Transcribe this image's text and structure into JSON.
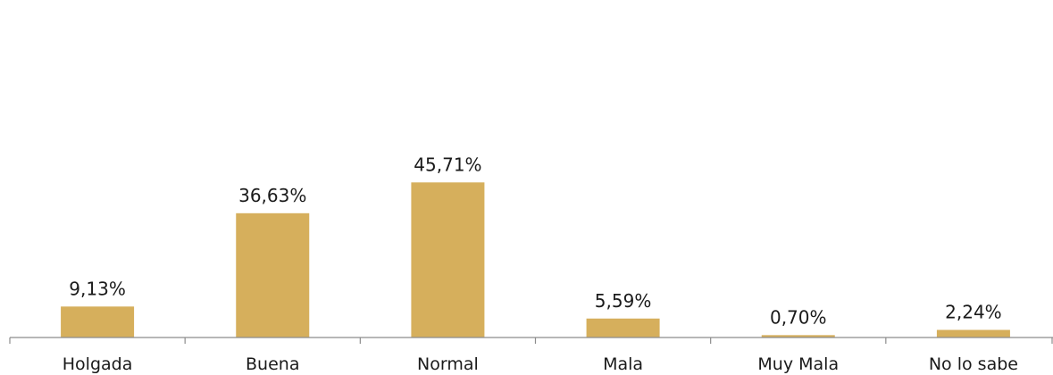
{
  "chart_data": {
    "type": "bar",
    "categories": [
      "Holgada",
      "Buena",
      "Normal",
      "Mala",
      "Muy Mala",
      "No lo sabe"
    ],
    "values": [
      9.13,
      36.63,
      45.71,
      5.59,
      0.7,
      2.24
    ],
    "value_labels": [
      "9,13%",
      "36,63%",
      "45,71%",
      "5,59%",
      "0,70%",
      "2,24%"
    ],
    "title": "",
    "xlabel": "",
    "ylabel": "",
    "ylim": [
      0,
      50
    ],
    "grid": false,
    "legend": "none",
    "colors": {
      "bar": "#D6AF5C",
      "axis": "#8c8c8c",
      "text": "#1a1a1a"
    }
  }
}
